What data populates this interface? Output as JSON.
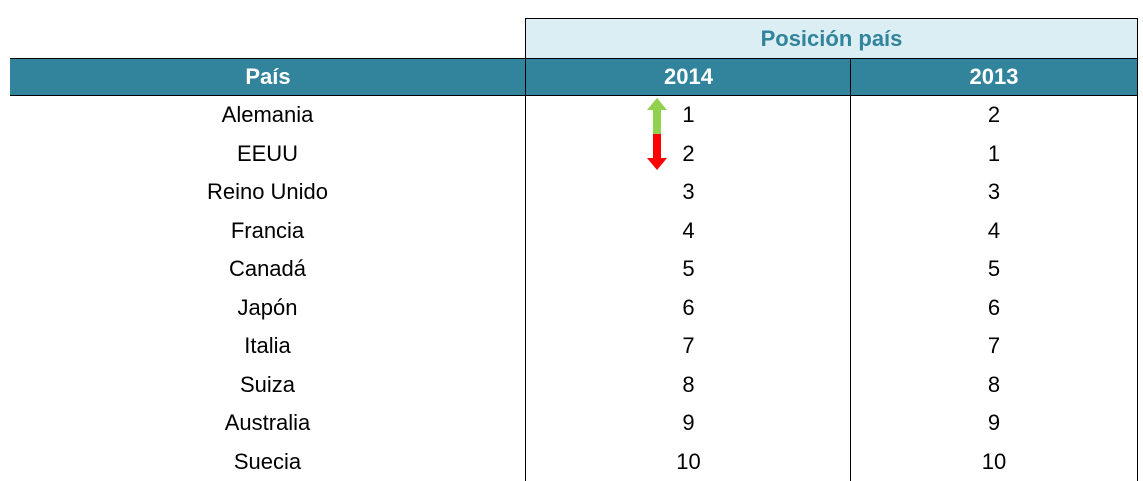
{
  "table": {
    "group_header": "Posición país",
    "columns": [
      "País",
      "2014",
      "2013"
    ],
    "rows": [
      [
        "Alemania",
        1,
        2
      ],
      [
        "EEUU",
        2,
        1
      ],
      [
        "Reino Unido",
        3,
        3
      ],
      [
        "Francia",
        4,
        4
      ],
      [
        "Canadá",
        5,
        5
      ],
      [
        "Japón",
        6,
        6
      ],
      [
        "Italia",
        7,
        7
      ],
      [
        "Suiza",
        8,
        8
      ],
      [
        "Australia",
        9,
        9
      ],
      [
        "Suecia",
        10,
        10
      ]
    ]
  }
}
